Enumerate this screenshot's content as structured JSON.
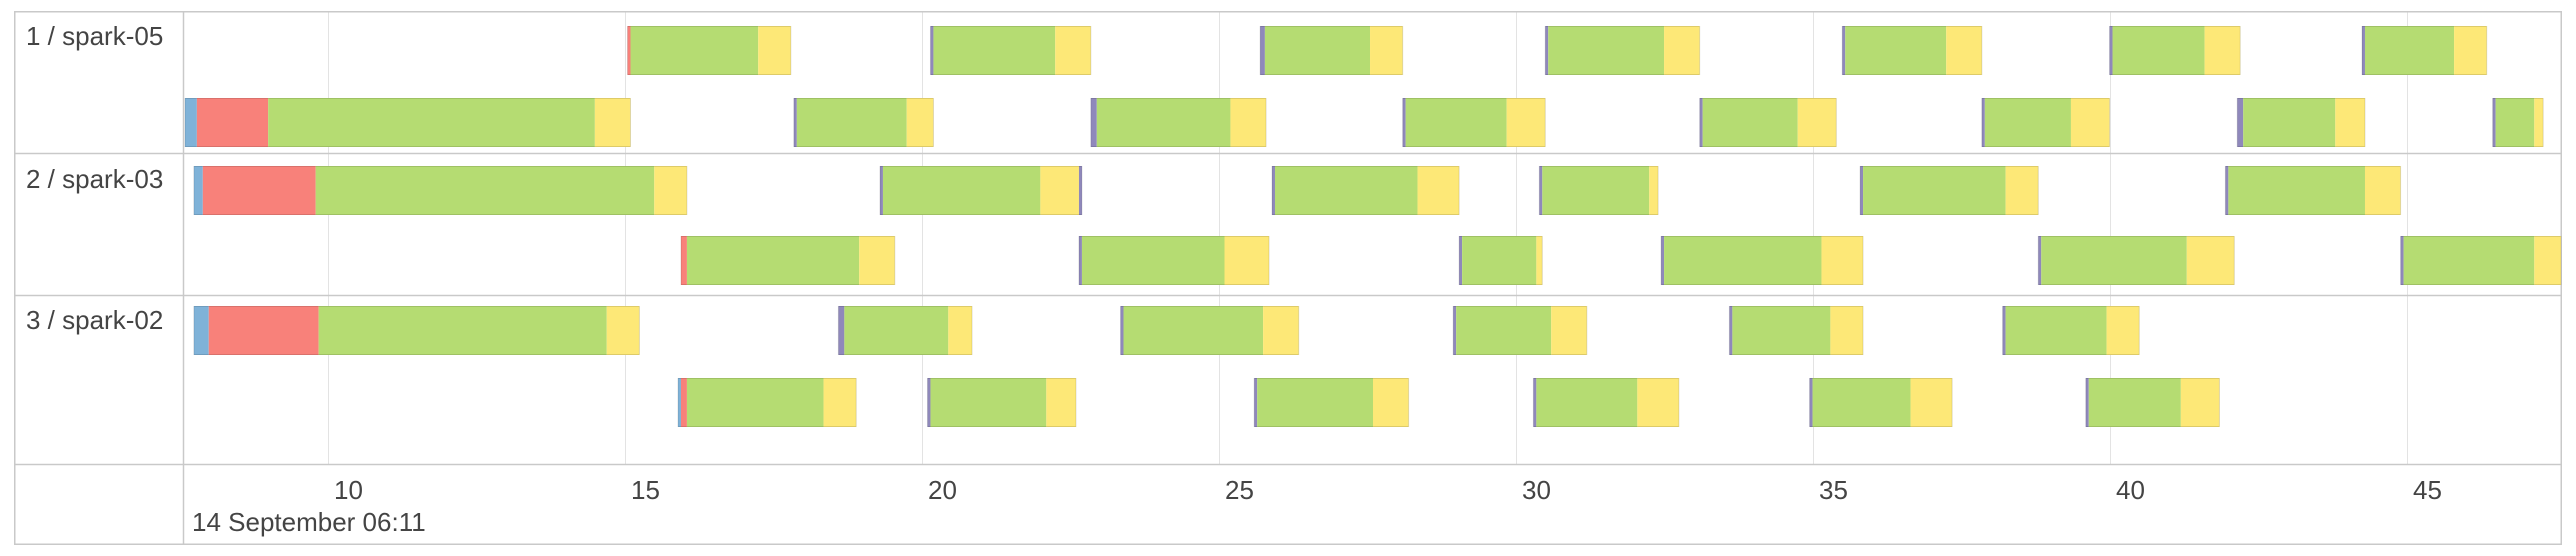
{
  "chart_data": {
    "type": "timeline",
    "title": "",
    "date_label": "14 September 06:11",
    "x_unit": "seconds after 06:11",
    "xlim": [
      7.6,
      47.6
    ],
    "ticks": [
      10,
      15,
      20,
      25,
      30,
      35,
      40,
      45
    ],
    "tick_labels": [
      "10",
      "15",
      "20",
      "25",
      "30",
      "35",
      "40",
      "45"
    ],
    "grid": true,
    "colors": {
      "blue": "#7fb2d8",
      "red": "#f8817a",
      "green": "#b5dc72",
      "yellow": "#fde877",
      "purple": "#8f88bb"
    },
    "groups": [
      {
        "label": "1 / spark-05",
        "lanes": [
          [
            [
              [
                15.05,
                15.1,
                "red"
              ],
              [
                15.1,
                17.25,
                "green"
              ],
              [
                17.25,
                17.8,
                "yellow"
              ]
            ],
            [
              [
                20.15,
                20.2,
                "purple"
              ],
              [
                20.2,
                22.25,
                "green"
              ],
              [
                22.25,
                22.85,
                "yellow"
              ]
            ],
            [
              [
                25.7,
                25.78,
                "purple"
              ],
              [
                25.78,
                27.55,
                "green"
              ],
              [
                27.55,
                28.1,
                "yellow"
              ]
            ],
            [
              [
                30.5,
                30.55,
                "purple"
              ],
              [
                30.55,
                32.5,
                "green"
              ],
              [
                32.5,
                33.1,
                "yellow"
              ]
            ],
            [
              [
                35.5,
                35.55,
                "purple"
              ],
              [
                35.55,
                37.25,
                "green"
              ],
              [
                37.25,
                37.85,
                "yellow"
              ]
            ],
            [
              [
                40.0,
                40.05,
                "purple"
              ],
              [
                40.05,
                41.6,
                "green"
              ],
              [
                41.6,
                42.2,
                "yellow"
              ]
            ],
            [
              [
                44.25,
                44.3,
                "purple"
              ],
              [
                44.3,
                45.8,
                "green"
              ],
              [
                45.8,
                46.35,
                "yellow"
              ]
            ]
          ],
          [
            [
              [
                7.6,
                7.8,
                "blue"
              ],
              [
                7.8,
                9.0,
                "red"
              ],
              [
                9.0,
                14.5,
                "green"
              ],
              [
                14.5,
                15.1,
                "yellow"
              ]
            ],
            [
              [
                17.85,
                17.9,
                "purple"
              ],
              [
                17.9,
                19.75,
                "green"
              ],
              [
                19.75,
                20.2,
                "yellow"
              ]
            ],
            [
              [
                22.85,
                22.95,
                "purple"
              ],
              [
                22.95,
                25.2,
                "green"
              ],
              [
                25.2,
                25.8,
                "yellow"
              ]
            ],
            [
              [
                28.1,
                28.15,
                "purple"
              ],
              [
                28.15,
                29.85,
                "green"
              ],
              [
                29.85,
                30.5,
                "yellow"
              ]
            ],
            [
              [
                33.1,
                33.15,
                "purple"
              ],
              [
                33.15,
                34.75,
                "green"
              ],
              [
                34.75,
                35.4,
                "yellow"
              ]
            ],
            [
              [
                37.85,
                37.9,
                "purple"
              ],
              [
                37.9,
                39.35,
                "green"
              ],
              [
                39.35,
                40.0,
                "yellow"
              ]
            ],
            [
              [
                42.15,
                42.25,
                "purple"
              ],
              [
                42.25,
                43.8,
                "green"
              ],
              [
                43.8,
                44.3,
                "yellow"
              ]
            ],
            [
              [
                46.45,
                46.5,
                "purple"
              ],
              [
                46.5,
                47.15,
                "green"
              ],
              [
                47.15,
                47.3,
                "yellow"
              ]
            ]
          ]
        ]
      },
      {
        "label": "2 / spark-03",
        "lanes": [
          [
            [
              [
                7.75,
                7.9,
                "blue"
              ],
              [
                7.9,
                9.8,
                "red"
              ],
              [
                9.8,
                15.5,
                "green"
              ],
              [
                15.5,
                16.05,
                "yellow"
              ]
            ],
            [
              [
                19.3,
                19.35,
                "purple"
              ],
              [
                19.35,
                22.0,
                "green"
              ],
              [
                22.0,
                22.65,
                "yellow"
              ],
              [
                22.65,
                22.7,
                "purple"
              ]
            ],
            [
              [
                25.9,
                25.95,
                "purple"
              ],
              [
                25.95,
                28.35,
                "green"
              ],
              [
                28.35,
                29.05,
                "yellow"
              ]
            ],
            [
              [
                30.4,
                30.45,
                "purple"
              ],
              [
                30.45,
                32.25,
                "green"
              ],
              [
                32.25,
                32.4,
                "yellow"
              ]
            ],
            [
              [
                35.8,
                35.85,
                "purple"
              ],
              [
                35.85,
                38.25,
                "green"
              ],
              [
                38.25,
                38.8,
                "yellow"
              ]
            ],
            [
              [
                41.95,
                42.0,
                "purple"
              ],
              [
                42.0,
                44.3,
                "green"
              ],
              [
                44.3,
                44.9,
                "yellow"
              ]
            ]
          ],
          [
            [
              [
                15.95,
                16.05,
                "red"
              ],
              [
                16.05,
                18.95,
                "green"
              ],
              [
                18.95,
                19.55,
                "yellow"
              ]
            ],
            [
              [
                22.65,
                22.7,
                "purple"
              ],
              [
                22.7,
                25.1,
                "green"
              ],
              [
                25.1,
                25.85,
                "yellow"
              ]
            ],
            [
              [
                29.05,
                29.1,
                "purple"
              ],
              [
                29.1,
                30.35,
                "green"
              ],
              [
                30.35,
                30.45,
                "yellow"
              ]
            ],
            [
              [
                32.45,
                32.5,
                "purple"
              ],
              [
                32.5,
                35.15,
                "green"
              ],
              [
                35.15,
                35.85,
                "yellow"
              ]
            ],
            [
              [
                38.8,
                38.85,
                "purple"
              ],
              [
                38.85,
                41.3,
                "green"
              ],
              [
                41.3,
                42.1,
                "yellow"
              ]
            ],
            [
              [
                44.9,
                44.95,
                "purple"
              ],
              [
                44.95,
                47.15,
                "green"
              ],
              [
                47.15,
                47.6,
                "yellow"
              ]
            ]
          ]
        ]
      },
      {
        "label": "3 / spark-02",
        "lanes": [
          [
            [
              [
                7.75,
                8.0,
                "blue"
              ],
              [
                8.0,
                9.85,
                "red"
              ],
              [
                9.85,
                14.7,
                "green"
              ],
              [
                14.7,
                15.25,
                "yellow"
              ]
            ],
            [
              [
                18.6,
                18.7,
                "purple"
              ],
              [
                18.7,
                20.45,
                "green"
              ],
              [
                20.45,
                20.85,
                "yellow"
              ]
            ],
            [
              [
                23.35,
                23.4,
                "purple"
              ],
              [
                23.4,
                25.75,
                "green"
              ],
              [
                25.75,
                26.35,
                "yellow"
              ]
            ],
            [
              [
                28.95,
                29.0,
                "purple"
              ],
              [
                29.0,
                30.6,
                "green"
              ],
              [
                30.6,
                31.2,
                "yellow"
              ]
            ],
            [
              [
                33.6,
                33.65,
                "purple"
              ],
              [
                33.65,
                35.3,
                "green"
              ],
              [
                35.3,
                35.85,
                "yellow"
              ]
            ],
            [
              [
                38.2,
                38.25,
                "purple"
              ],
              [
                38.25,
                39.95,
                "green"
              ],
              [
                39.95,
                40.5,
                "yellow"
              ]
            ]
          ],
          [
            [
              [
                15.9,
                15.95,
                "blue"
              ],
              [
                15.95,
                16.05,
                "red"
              ],
              [
                16.05,
                18.35,
                "green"
              ],
              [
                18.35,
                18.9,
                "yellow"
              ]
            ],
            [
              [
                20.1,
                20.15,
                "purple"
              ],
              [
                20.15,
                22.1,
                "green"
              ],
              [
                22.1,
                22.6,
                "yellow"
              ]
            ],
            [
              [
                25.6,
                25.65,
                "purple"
              ],
              [
                25.65,
                27.6,
                "green"
              ],
              [
                27.6,
                28.2,
                "yellow"
              ]
            ],
            [
              [
                30.3,
                30.35,
                "purple"
              ],
              [
                30.35,
                32.05,
                "green"
              ],
              [
                32.05,
                32.75,
                "yellow"
              ]
            ],
            [
              [
                34.95,
                35.0,
                "purple"
              ],
              [
                35.0,
                36.65,
                "green"
              ],
              [
                36.65,
                37.35,
                "yellow"
              ]
            ],
            [
              [
                39.6,
                39.65,
                "purple"
              ],
              [
                39.65,
                41.2,
                "green"
              ],
              [
                41.2,
                41.85,
                "yellow"
              ]
            ]
          ]
        ]
      }
    ]
  }
}
